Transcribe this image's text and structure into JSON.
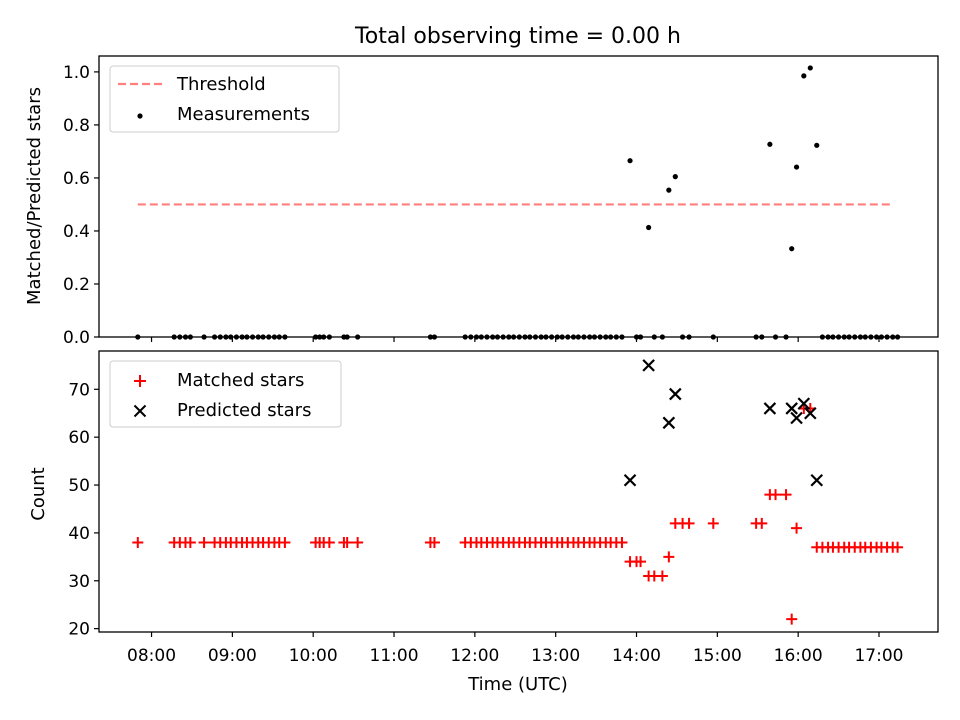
{
  "chart_data": [
    {
      "type": "scatter",
      "title": "Total observing time = 0.00 h",
      "xlabel": "",
      "ylabel": "Matched/Predicted stars",
      "ylim": [
        0,
        1.06
      ],
      "yticks": [
        0.0,
        0.2,
        0.4,
        0.6,
        0.8,
        1.0
      ],
      "legend_position": "top-left",
      "threshold": {
        "name": "Threshold",
        "value": 0.5,
        "x_start": 7.83,
        "x_end": 17.17,
        "color": "#ff7f7f"
      },
      "series": [
        {
          "name": "Measurements",
          "color": "#000000",
          "points": [
            [
              7.83,
              0.0
            ],
            [
              8.28,
              0.0
            ],
            [
              8.35,
              0.0
            ],
            [
              8.42,
              0.0
            ],
            [
              8.48,
              0.0
            ],
            [
              8.65,
              0.0
            ],
            [
              8.78,
              0.0
            ],
            [
              8.85,
              0.0
            ],
            [
              8.92,
              0.0
            ],
            [
              8.98,
              0.0
            ],
            [
              9.05,
              0.0
            ],
            [
              9.12,
              0.0
            ],
            [
              9.18,
              0.0
            ],
            [
              9.25,
              0.0
            ],
            [
              9.32,
              0.0
            ],
            [
              9.38,
              0.0
            ],
            [
              9.45,
              0.0
            ],
            [
              9.52,
              0.0
            ],
            [
              9.58,
              0.0
            ],
            [
              9.65,
              0.0
            ],
            [
              10.03,
              0.0
            ],
            [
              10.08,
              0.0
            ],
            [
              10.13,
              0.0
            ],
            [
              10.2,
              0.0
            ],
            [
              10.38,
              0.0
            ],
            [
              10.42,
              0.0
            ],
            [
              10.55,
              0.0
            ],
            [
              11.45,
              0.0
            ],
            [
              11.5,
              0.0
            ],
            [
              11.88,
              0.0
            ],
            [
              11.95,
              0.0
            ],
            [
              12.02,
              0.0
            ],
            [
              12.08,
              0.0
            ],
            [
              12.15,
              0.0
            ],
            [
              12.22,
              0.0
            ],
            [
              12.28,
              0.0
            ],
            [
              12.35,
              0.0
            ],
            [
              12.42,
              0.0
            ],
            [
              12.48,
              0.0
            ],
            [
              12.55,
              0.0
            ],
            [
              12.62,
              0.0
            ],
            [
              12.68,
              0.0
            ],
            [
              12.75,
              0.0
            ],
            [
              12.82,
              0.0
            ],
            [
              12.88,
              0.0
            ],
            [
              12.95,
              0.0
            ],
            [
              13.02,
              0.0
            ],
            [
              13.08,
              0.0
            ],
            [
              13.15,
              0.0
            ],
            [
              13.22,
              0.0
            ],
            [
              13.28,
              0.0
            ],
            [
              13.35,
              0.0
            ],
            [
              13.42,
              0.0
            ],
            [
              13.48,
              0.0
            ],
            [
              13.55,
              0.0
            ],
            [
              13.62,
              0.0
            ],
            [
              13.68,
              0.0
            ],
            [
              13.75,
              0.0
            ],
            [
              13.82,
              0.0
            ],
            [
              13.92,
              0.665
            ],
            [
              14.0,
              0.0
            ],
            [
              14.05,
              0.0
            ],
            [
              14.15,
              0.413
            ],
            [
              14.22,
              0.0
            ],
            [
              14.32,
              0.0
            ],
            [
              14.4,
              0.554
            ],
            [
              14.48,
              0.605
            ],
            [
              14.57,
              0.0
            ],
            [
              14.65,
              0.0
            ],
            [
              14.95,
              0.0
            ],
            [
              15.48,
              0.0
            ],
            [
              15.55,
              0.0
            ],
            [
              15.65,
              0.727
            ],
            [
              15.72,
              0.0
            ],
            [
              15.85,
              0.0
            ],
            [
              15.92,
              0.333
            ],
            [
              15.98,
              0.641
            ],
            [
              16.07,
              0.985
            ],
            [
              16.15,
              1.015
            ],
            [
              16.23,
              0.723
            ],
            [
              16.3,
              0.0
            ],
            [
              16.37,
              0.0
            ],
            [
              16.43,
              0.0
            ],
            [
              16.5,
              0.0
            ],
            [
              16.57,
              0.0
            ],
            [
              16.63,
              0.0
            ],
            [
              16.7,
              0.0
            ],
            [
              16.77,
              0.0
            ],
            [
              16.83,
              0.0
            ],
            [
              16.9,
              0.0
            ],
            [
              16.97,
              0.0
            ],
            [
              17.03,
              0.0
            ],
            [
              17.1,
              0.0
            ],
            [
              17.17,
              0.0
            ],
            [
              17.23,
              0.0
            ]
          ]
        }
      ]
    },
    {
      "type": "scatter",
      "title": "",
      "xlabel": "Time (UTC)",
      "ylabel": "Count",
      "xlim": [
        7.35,
        17.73
      ],
      "xticks": [
        8,
        9,
        10,
        11,
        12,
        13,
        14,
        15,
        16,
        17
      ],
      "xtick_labels": [
        "08:00",
        "09:00",
        "10:00",
        "11:00",
        "12:00",
        "13:00",
        "14:00",
        "15:00",
        "16:00",
        "17:00"
      ],
      "ylim": [
        19.3,
        78
      ],
      "yticks": [
        20,
        30,
        40,
        50,
        60,
        70
      ],
      "legend_position": "top-left",
      "series": [
        {
          "name": "Matched stars",
          "marker": "+",
          "color": "#ff0000",
          "points": [
            [
              7.83,
              38
            ],
            [
              8.28,
              38
            ],
            [
              8.35,
              38
            ],
            [
              8.42,
              38
            ],
            [
              8.48,
              38
            ],
            [
              8.65,
              38
            ],
            [
              8.78,
              38
            ],
            [
              8.85,
              38
            ],
            [
              8.92,
              38
            ],
            [
              8.98,
              38
            ],
            [
              9.05,
              38
            ],
            [
              9.12,
              38
            ],
            [
              9.18,
              38
            ],
            [
              9.25,
              38
            ],
            [
              9.32,
              38
            ],
            [
              9.38,
              38
            ],
            [
              9.45,
              38
            ],
            [
              9.52,
              38
            ],
            [
              9.58,
              38
            ],
            [
              9.65,
              38
            ],
            [
              10.03,
              38
            ],
            [
              10.08,
              38
            ],
            [
              10.13,
              38
            ],
            [
              10.2,
              38
            ],
            [
              10.38,
              38
            ],
            [
              10.42,
              38
            ],
            [
              10.55,
              38
            ],
            [
              11.45,
              38
            ],
            [
              11.5,
              38
            ],
            [
              11.88,
              38
            ],
            [
              11.95,
              38
            ],
            [
              12.02,
              38
            ],
            [
              12.08,
              38
            ],
            [
              12.15,
              38
            ],
            [
              12.22,
              38
            ],
            [
              12.28,
              38
            ],
            [
              12.35,
              38
            ],
            [
              12.42,
              38
            ],
            [
              12.48,
              38
            ],
            [
              12.55,
              38
            ],
            [
              12.62,
              38
            ],
            [
              12.68,
              38
            ],
            [
              12.75,
              38
            ],
            [
              12.82,
              38
            ],
            [
              12.88,
              38
            ],
            [
              12.95,
              38
            ],
            [
              13.02,
              38
            ],
            [
              13.08,
              38
            ],
            [
              13.15,
              38
            ],
            [
              13.22,
              38
            ],
            [
              13.28,
              38
            ],
            [
              13.35,
              38
            ],
            [
              13.42,
              38
            ],
            [
              13.48,
              38
            ],
            [
              13.55,
              38
            ],
            [
              13.62,
              38
            ],
            [
              13.68,
              38
            ],
            [
              13.75,
              38
            ],
            [
              13.82,
              38
            ],
            [
              13.92,
              34
            ],
            [
              14.0,
              34
            ],
            [
              14.05,
              34
            ],
            [
              14.15,
              31
            ],
            [
              14.22,
              31
            ],
            [
              14.32,
              31
            ],
            [
              14.4,
              35
            ],
            [
              14.48,
              42
            ],
            [
              14.57,
              42
            ],
            [
              14.65,
              42
            ],
            [
              14.95,
              42
            ],
            [
              15.48,
              42
            ],
            [
              15.55,
              42
            ],
            [
              15.65,
              48
            ],
            [
              15.72,
              48
            ],
            [
              15.85,
              48
            ],
            [
              15.92,
              22
            ],
            [
              15.98,
              41
            ],
            [
              16.07,
              66
            ],
            [
              16.15,
              66
            ],
            [
              16.23,
              37
            ],
            [
              16.3,
              37
            ],
            [
              16.37,
              37
            ],
            [
              16.43,
              37
            ],
            [
              16.5,
              37
            ],
            [
              16.57,
              37
            ],
            [
              16.63,
              37
            ],
            [
              16.7,
              37
            ],
            [
              16.77,
              37
            ],
            [
              16.83,
              37
            ],
            [
              16.9,
              37
            ],
            [
              16.97,
              37
            ],
            [
              17.03,
              37
            ],
            [
              17.1,
              37
            ],
            [
              17.17,
              37
            ],
            [
              17.23,
              37
            ]
          ]
        },
        {
          "name": "Predicted stars",
          "marker": "x",
          "color": "#000000",
          "points": [
            [
              13.92,
              51
            ],
            [
              14.15,
              75
            ],
            [
              14.4,
              63
            ],
            [
              14.48,
              69
            ],
            [
              15.65,
              66
            ],
            [
              15.92,
              66
            ],
            [
              15.98,
              64
            ],
            [
              16.07,
              67
            ],
            [
              16.15,
              65
            ],
            [
              16.23,
              51
            ]
          ]
        }
      ]
    }
  ]
}
